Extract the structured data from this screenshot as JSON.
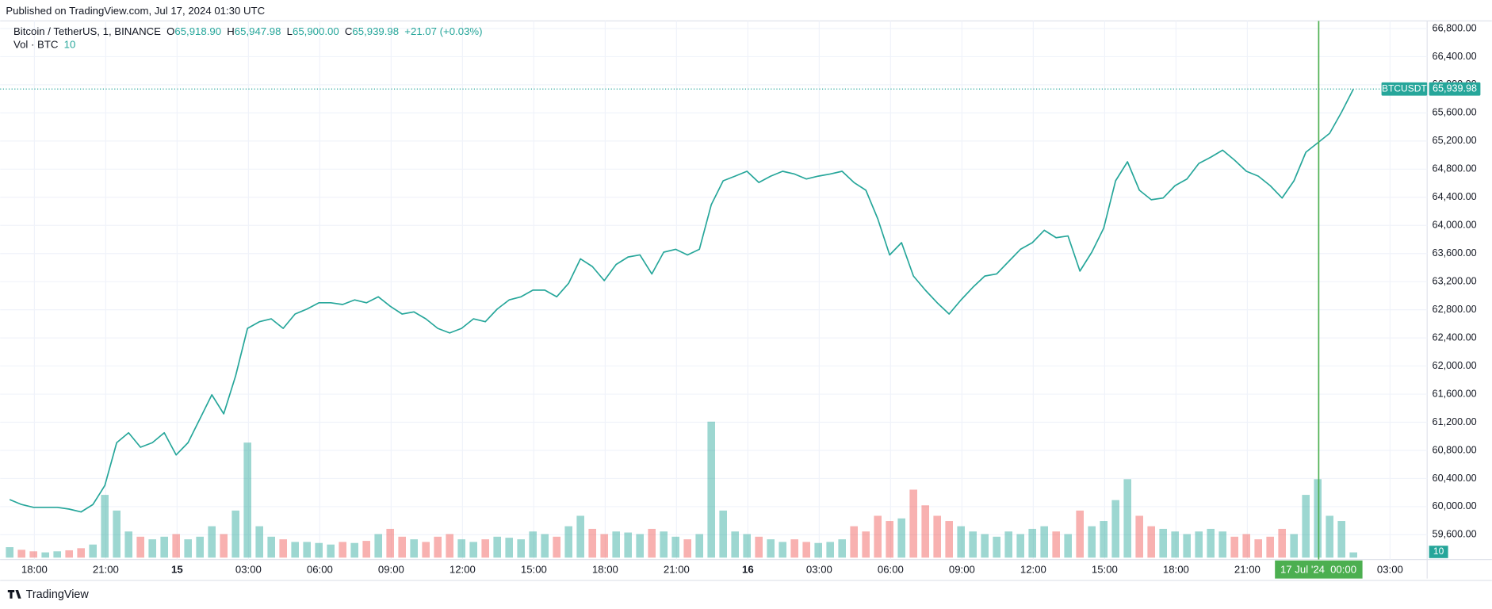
{
  "chart_data": {
    "type": "line",
    "published": "Published on TradingView.com, Jul 17, 2024 01:30 UTC",
    "legend": {
      "symbol": "Bitcoin / TetherUS, 1, BINANCE",
      "o": "O",
      "open": "65,918.90",
      "h": "H",
      "high": "65,947.98",
      "l": "L",
      "low": "65,900.00",
      "c": "C",
      "close": "65,939.98",
      "change": "+21.07 (+0.03%)",
      "volume_name": "Vol · BTC"
    },
    "ticker": "BTCUSDT",
    "brand": "TradingView",
    "up_color": "#26a69a",
    "down_color": "#ef5350",
    "crosshair_color": "#4caf50",
    "crosshair": {
      "date": "17 Jul '24",
      "time": "00:00"
    },
    "time_axis": [
      "18:00",
      "21:00",
      "15",
      "03:00",
      "06:00",
      "09:00",
      "12:00",
      "15:00",
      "18:00",
      "21:00",
      "16",
      "03:00",
      "06:00",
      "09:00",
      "12:00",
      "15:00",
      "18:00",
      "21:00",
      null,
      "03:00"
    ],
    "values": [
      60100,
      60030,
      59990,
      59990,
      59990,
      59965,
      59925,
      60030,
      60300,
      60910,
      61050,
      60845,
      60910,
      61050,
      60735,
      60910,
      61250,
      61590,
      61320,
      61860,
      62535,
      62630,
      62670,
      62535,
      62740,
      62810,
      62900,
      62900,
      62875,
      62940,
      62900,
      62985,
      62850,
      62740,
      62770,
      62670,
      62535,
      62470,
      62535,
      62670,
      62630,
      62810,
      62940,
      62985,
      63080,
      63080,
      62985,
      63175,
      63525,
      63415,
      63215,
      63445,
      63550,
      63580,
      63310,
      63620,
      63660,
      63580,
      63660,
      64295,
      64635,
      64700,
      64770,
      64610,
      64700,
      64770,
      64730,
      64660,
      64700,
      64730,
      64770,
      64610,
      64500,
      64095,
      63580,
      63755,
      63280,
      63080,
      62900,
      62740,
      62940,
      63120,
      63280,
      63310,
      63485,
      63660,
      63755,
      63930,
      63825,
      63850,
      63350,
      63620,
      63960,
      64635,
      64905,
      64500,
      64365,
      64390,
      64565,
      64660,
      64880,
      64970,
      65070,
      64930,
      64770,
      64700,
      64565,
      64390,
      64635,
      65040,
      65175,
      65310,
      65610,
      65939.98
    ],
    "volume": [
      20,
      15,
      12,
      10,
      12,
      14,
      18,
      25,
      120,
      90,
      50,
      40,
      35,
      40,
      45,
      35,
      40,
      60,
      45,
      90,
      220,
      60,
      40,
      35,
      30,
      30,
      28,
      25,
      30,
      28,
      32,
      45,
      55,
      40,
      35,
      30,
      40,
      45,
      35,
      30,
      35,
      40,
      38,
      35,
      50,
      45,
      40,
      60,
      80,
      55,
      45,
      50,
      48,
      45,
      55,
      50,
      40,
      35,
      45,
      260,
      90,
      50,
      45,
      40,
      35,
      30,
      35,
      30,
      28,
      30,
      35,
      60,
      50,
      80,
      70,
      75,
      130,
      100,
      80,
      70,
      60,
      50,
      45,
      40,
      50,
      45,
      55,
      60,
      50,
      45,
      90,
      60,
      70,
      110,
      150,
      80,
      60,
      55,
      50,
      45,
      50,
      55,
      50,
      40,
      45,
      35,
      40,
      55,
      45,
      120,
      150,
      80,
      70,
      10
    ],
    "ylim": [
      59248,
      66908
    ],
    "vol_ylim": [
      0,
      1030
    ],
    "yticks": [
      {
        "value": 59600,
        "label": "59,600.00"
      },
      {
        "value": 60000,
        "label": "60,000.00"
      },
      {
        "value": 60400,
        "label": "60,400.00"
      },
      {
        "value": 60800,
        "label": "60,800.00"
      },
      {
        "value": 61200,
        "label": "61,200.00"
      },
      {
        "value": 61600,
        "label": "61,600.00"
      },
      {
        "value": 62000,
        "label": "62,000.00"
      },
      {
        "value": 62400,
        "label": "62,400.00"
      },
      {
        "value": 62800,
        "label": "62,800.00"
      },
      {
        "value": 63200,
        "label": "63,200.00"
      },
      {
        "value": 63600,
        "label": "63,600.00"
      },
      {
        "value": 64000,
        "label": "64,000.00"
      },
      {
        "value": 64400,
        "label": "64,400.00"
      },
      {
        "value": 64800,
        "label": "64,800.00"
      },
      {
        "value": 65200,
        "label": "65,200.00"
      },
      {
        "value": 65600,
        "label": "65,600.00"
      },
      {
        "value": 66000,
        "label": "66,000.00"
      },
      {
        "value": 66400,
        "label": "66,400.00"
      },
      {
        "value": 66800,
        "label": "66,800.00"
      }
    ],
    "grid": true
  }
}
